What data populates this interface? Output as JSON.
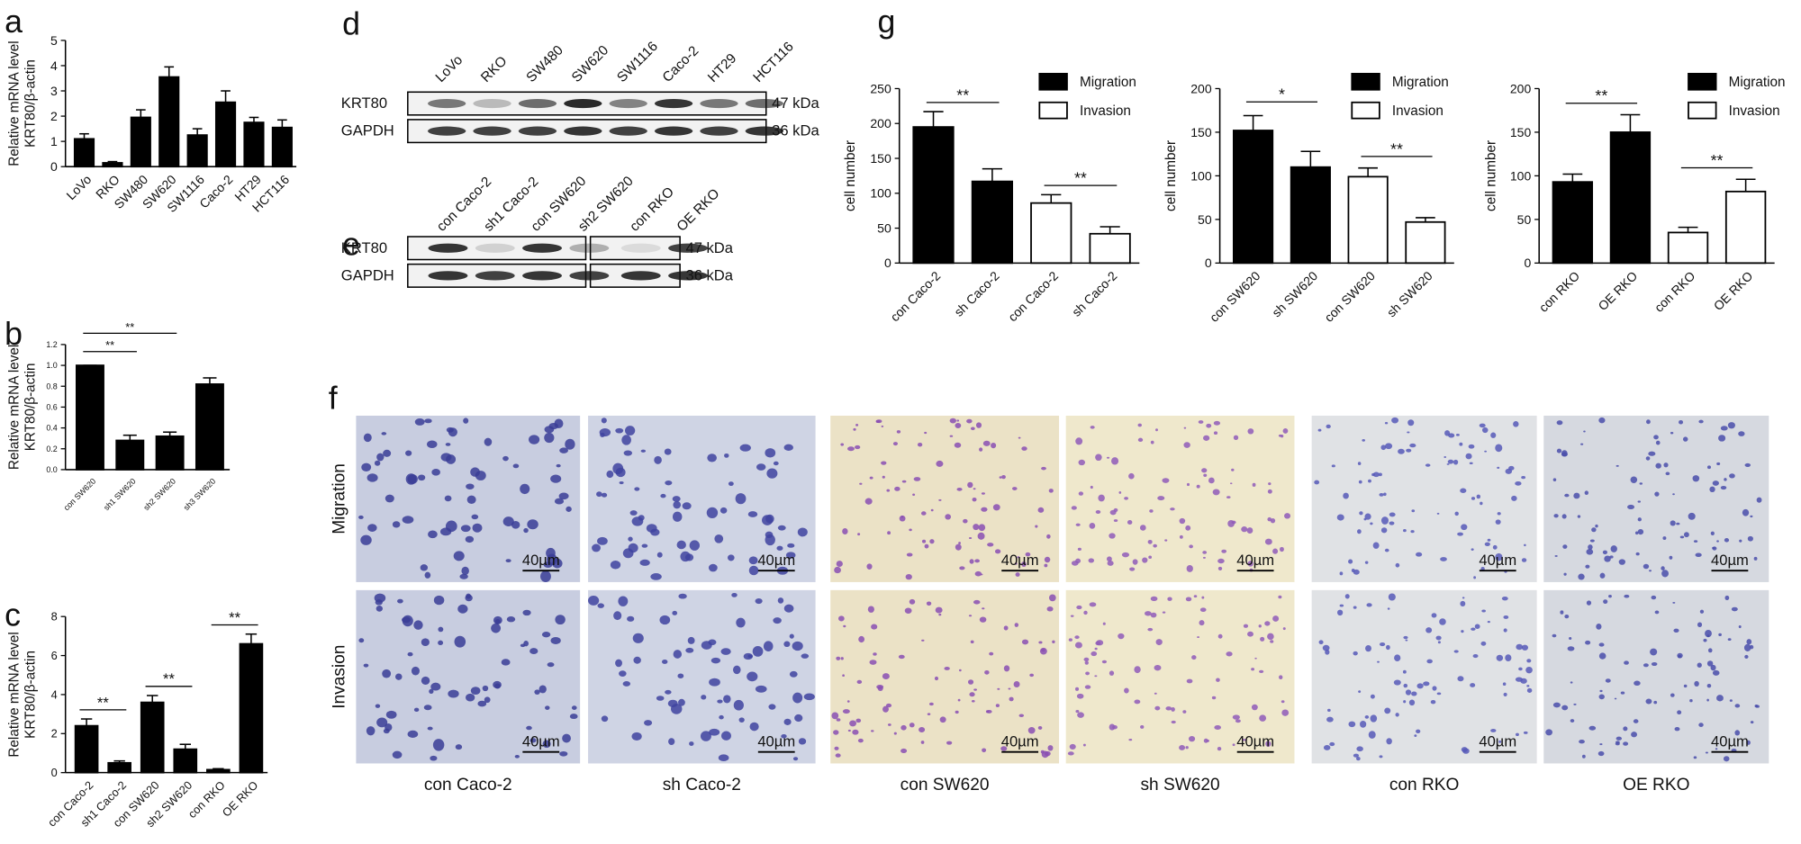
{
  "chart_data": [
    {
      "type": "bar",
      "panel": "a",
      "ylabel": [
        "Relative mRNA level",
        "KRT80/β-actin"
      ],
      "categories": [
        "LoVo",
        "RKO",
        "SW480",
        "SW620",
        "SW1116",
        "Caco-2",
        "HT29",
        "HCT116"
      ],
      "values": [
        1.1,
        0.15,
        1.95,
        3.55,
        1.25,
        2.55,
        1.75,
        1.55
      ],
      "errors": [
        0.2,
        0.05,
        0.3,
        0.4,
        0.25,
        0.45,
        0.2,
        0.3
      ],
      "color": "#000000",
      "ylim": [
        0,
        5
      ],
      "yticks": [
        0,
        1,
        2,
        3,
        4,
        5
      ]
    },
    {
      "type": "bar",
      "panel": "b",
      "ylabel": [
        "Relative mRNA level",
        "KRT80/β-actin"
      ],
      "categories": [
        "con SW620",
        "sh1 SW620",
        "sh2 SW620",
        "sh3 SW620"
      ],
      "values": [
        1.0,
        0.28,
        0.32,
        0.82
      ],
      "errors": [
        0,
        0.05,
        0.04,
        0.06
      ],
      "color": "#000000",
      "ylim": [
        0,
        1.2
      ],
      "yticks": [
        {
          "value": 0,
          "label": "0.0"
        },
        {
          "value": 0.2,
          "label": "0.2"
        },
        {
          "value": 0.4,
          "label": "0.4"
        },
        {
          "value": 0.6,
          "label": "0.6"
        },
        {
          "value": 0.8,
          "label": "0.8"
        },
        {
          "value": 1.0,
          "label": "1.0"
        },
        {
          "value": 1.2,
          "label": "1.2"
        }
      ],
      "annotations": [
        "**",
        "**"
      ]
    },
    {
      "type": "bar",
      "panel": "c",
      "ylabel": [
        "Relative mRNA level",
        "KRT80/β-actin"
      ],
      "categories": [
        "con Caco-2",
        "sh1 Caco-2",
        "con SW620",
        "sh2 SW620",
        "con RKO",
        "OE RKO"
      ],
      "values": [
        2.4,
        0.5,
        3.6,
        1.2,
        0.15,
        6.6
      ],
      "errors": [
        0.35,
        0.1,
        0.35,
        0.25,
        0.05,
        0.5
      ],
      "color": "#000000",
      "ylim": [
        0,
        8
      ],
      "yticks": [
        0,
        2,
        4,
        6,
        8
      ],
      "annotations": [
        "**",
        "**",
        "**"
      ]
    },
    {
      "type": "bar",
      "panel": "g",
      "ylabel": [
        "cell number"
      ],
      "categories": [
        "con Caco-2",
        "sh Caco-2",
        "con Caco-2",
        "sh Caco-2"
      ],
      "series": [
        {
          "name": "Migration",
          "color": "#000000",
          "values": [
            195,
            117,
            null,
            null
          ],
          "errors": [
            22,
            18,
            null,
            null
          ]
        },
        {
          "name": "Invasion",
          "color": "#ffffff",
          "values": [
            null,
            null,
            86,
            42
          ],
          "errors": [
            null,
            null,
            12,
            10
          ]
        }
      ],
      "ylim": [
        0,
        250
      ],
      "yticks": [
        0,
        50,
        100,
        150,
        200,
        250
      ],
      "annotations": [
        "**",
        "**"
      ]
    },
    {
      "type": "bar",
      "ylabel": [
        "cell number"
      ],
      "categories": [
        "con SW620",
        "sh SW620",
        "con SW620",
        "sh SW620"
      ],
      "series": [
        {
          "name": "Migration",
          "color": "#000000",
          "values": [
            152,
            110,
            null,
            null
          ],
          "errors": [
            17,
            18,
            null,
            null
          ]
        },
        {
          "name": "Invasion",
          "color": "#ffffff",
          "values": [
            null,
            null,
            99,
            47
          ],
          "errors": [
            null,
            null,
            10,
            5
          ]
        }
      ],
      "ylim": [
        0,
        200
      ],
      "yticks": [
        0,
        50,
        100,
        150,
        200
      ],
      "annotations": [
        "*",
        "**"
      ]
    },
    {
      "type": "bar",
      "ylabel": [
        "cell number"
      ],
      "categories": [
        "con RKO",
        "OE RKO",
        "con RKO",
        "OE RKO"
      ],
      "series": [
        {
          "name": "Migration",
          "color": "#000000",
          "values": [
            93,
            150,
            null,
            null
          ],
          "errors": [
            9,
            20,
            null,
            null
          ]
        },
        {
          "name": "Invasion",
          "color": "#ffffff",
          "values": [
            null,
            null,
            35,
            82
          ],
          "errors": [
            null,
            null,
            6,
            14
          ]
        }
      ],
      "ylim": [
        0,
        200
      ],
      "yticks": [
        0,
        50,
        100,
        150,
        200
      ],
      "annotations": [
        "**",
        "**"
      ]
    }
  ],
  "blots": [
    {
      "panel": "d",
      "lanes": [
        "LoVo",
        "RKO",
        "SW480",
        "SW620",
        "SW1116",
        "Caco-2",
        "HT29",
        "HCT116"
      ],
      "rows": [
        "KRT80",
        "GAPDH"
      ],
      "sizes": [
        "47 kDa",
        "36 kDa"
      ]
    },
    {
      "panel": "e",
      "lanes": [
        "con Caco-2",
        "sh1 Caco-2",
        "con SW620",
        "sh2 SW620",
        "con RKO",
        "OE RKO"
      ],
      "rows": [
        "KRT80",
        "GAPDH"
      ],
      "sizes": [
        "47 kDa",
        "36 kDa"
      ]
    }
  ],
  "micrographs": {
    "panel": "f",
    "rows": [
      "Migration",
      "Invasion"
    ],
    "columns": [
      "con Caco-2",
      "sh Caco-2",
      "con SW620",
      "sh SW620",
      "con RKO",
      "OE RKO"
    ],
    "scale_bar": "40µm"
  }
}
